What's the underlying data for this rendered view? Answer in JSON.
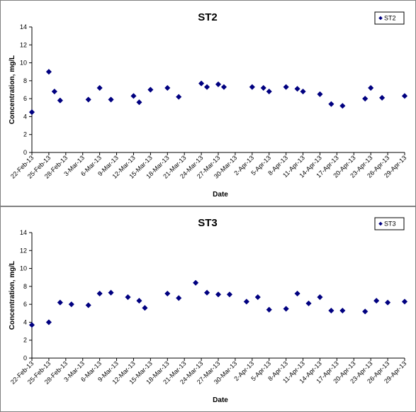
{
  "colors": {
    "marker": "#000080",
    "axis": "#000000",
    "legend_border": "#000000"
  },
  "dates": [
    "22-Feb-13",
    "25-Feb-13",
    "28-Feb-13",
    "3-Mar-13",
    "6-Mar-13",
    "9-Mar-13",
    "12-Mar-13",
    "15-Mar-13",
    "18-Mar-13",
    "21-Mar-13",
    "24-Mar-13",
    "27-Mar-13",
    "30-Mar-13",
    "2-Apr-13",
    "5-Apr-13",
    "8-Apr-13",
    "11-Apr-13",
    "14-Apr-13",
    "17-Apr-13",
    "20-Apr-13",
    "23-Apr-13",
    "26-Apr-13",
    "29-Apr-13"
  ],
  "chart_data": [
    {
      "type": "scatter",
      "title": "ST2",
      "xlabel": "Date",
      "ylabel": "Concentration, mg/L",
      "ylim": [
        0,
        14
      ],
      "yticks": [
        0,
        2,
        4,
        6,
        8,
        10,
        12,
        14
      ],
      "grid": false,
      "legend": "top-right",
      "series": [
        {
          "name": "ST2",
          "marker": "diamond",
          "points": [
            [
              "22-Feb-13",
              4.5
            ],
            [
              "25-Feb-13",
              9.0
            ],
            [
              "26-Feb-13",
              6.8
            ],
            [
              "27-Feb-13",
              5.8
            ],
            [
              "4-Mar-13",
              5.9
            ],
            [
              "6-Mar-13",
              7.2
            ],
            [
              "8-Mar-13",
              5.9
            ],
            [
              "12-Mar-13",
              6.3
            ],
            [
              "13-Mar-13",
              5.6
            ],
            [
              "15-Mar-13",
              7.0
            ],
            [
              "18-Mar-13",
              7.2
            ],
            [
              "20-Mar-13",
              6.2
            ],
            [
              "24-Mar-13",
              7.7
            ],
            [
              "25-Mar-13",
              7.3
            ],
            [
              "27-Mar-13",
              7.6
            ],
            [
              "28-Mar-13",
              7.3
            ],
            [
              "2-Apr-13",
              7.3
            ],
            [
              "4-Apr-13",
              7.2
            ],
            [
              "5-Apr-13",
              6.8
            ],
            [
              "8-Apr-13",
              7.3
            ],
            [
              "10-Apr-13",
              7.1
            ],
            [
              "11-Apr-13",
              6.8
            ],
            [
              "14-Apr-13",
              6.5
            ],
            [
              "16-Apr-13",
              5.4
            ],
            [
              "18-Apr-13",
              5.2
            ],
            [
              "22-Apr-13",
              6.0
            ],
            [
              "23-Apr-13",
              7.2
            ],
            [
              "25-Apr-13",
              6.1
            ],
            [
              "29-Apr-13",
              6.3
            ]
          ]
        }
      ]
    },
    {
      "type": "scatter",
      "title": "ST3",
      "xlabel": "Date",
      "ylabel": "Concentration, mg/L",
      "ylim": [
        0,
        14
      ],
      "yticks": [
        0,
        2,
        4,
        6,
        8,
        10,
        12,
        14
      ],
      "grid": false,
      "legend": "top-right",
      "series": [
        {
          "name": "ST3",
          "marker": "diamond",
          "points": [
            [
              "22-Feb-13",
              3.7
            ],
            [
              "25-Feb-13",
              4.0
            ],
            [
              "27-Feb-13",
              6.2
            ],
            [
              "1-Mar-13",
              6.0
            ],
            [
              "4-Mar-13",
              5.9
            ],
            [
              "6-Mar-13",
              7.2
            ],
            [
              "8-Mar-13",
              7.3
            ],
            [
              "11-Mar-13",
              6.8
            ],
            [
              "13-Mar-13",
              6.4
            ],
            [
              "14-Mar-13",
              5.6
            ],
            [
              "18-Mar-13",
              7.2
            ],
            [
              "20-Mar-13",
              6.7
            ],
            [
              "23-Mar-13",
              8.4
            ],
            [
              "25-Mar-13",
              7.3
            ],
            [
              "27-Mar-13",
              7.1
            ],
            [
              "29-Mar-13",
              7.1
            ],
            [
              "1-Apr-13",
              6.3
            ],
            [
              "3-Apr-13",
              6.8
            ],
            [
              "5-Apr-13",
              5.4
            ],
            [
              "8-Apr-13",
              5.5
            ],
            [
              "10-Apr-13",
              7.2
            ],
            [
              "12-Apr-13",
              6.1
            ],
            [
              "14-Apr-13",
              6.8
            ],
            [
              "16-Apr-13",
              5.3
            ],
            [
              "18-Apr-13",
              5.3
            ],
            [
              "22-Apr-13",
              5.2
            ],
            [
              "24-Apr-13",
              6.4
            ],
            [
              "26-Apr-13",
              6.2
            ],
            [
              "29-Apr-13",
              6.3
            ]
          ]
        }
      ]
    }
  ]
}
